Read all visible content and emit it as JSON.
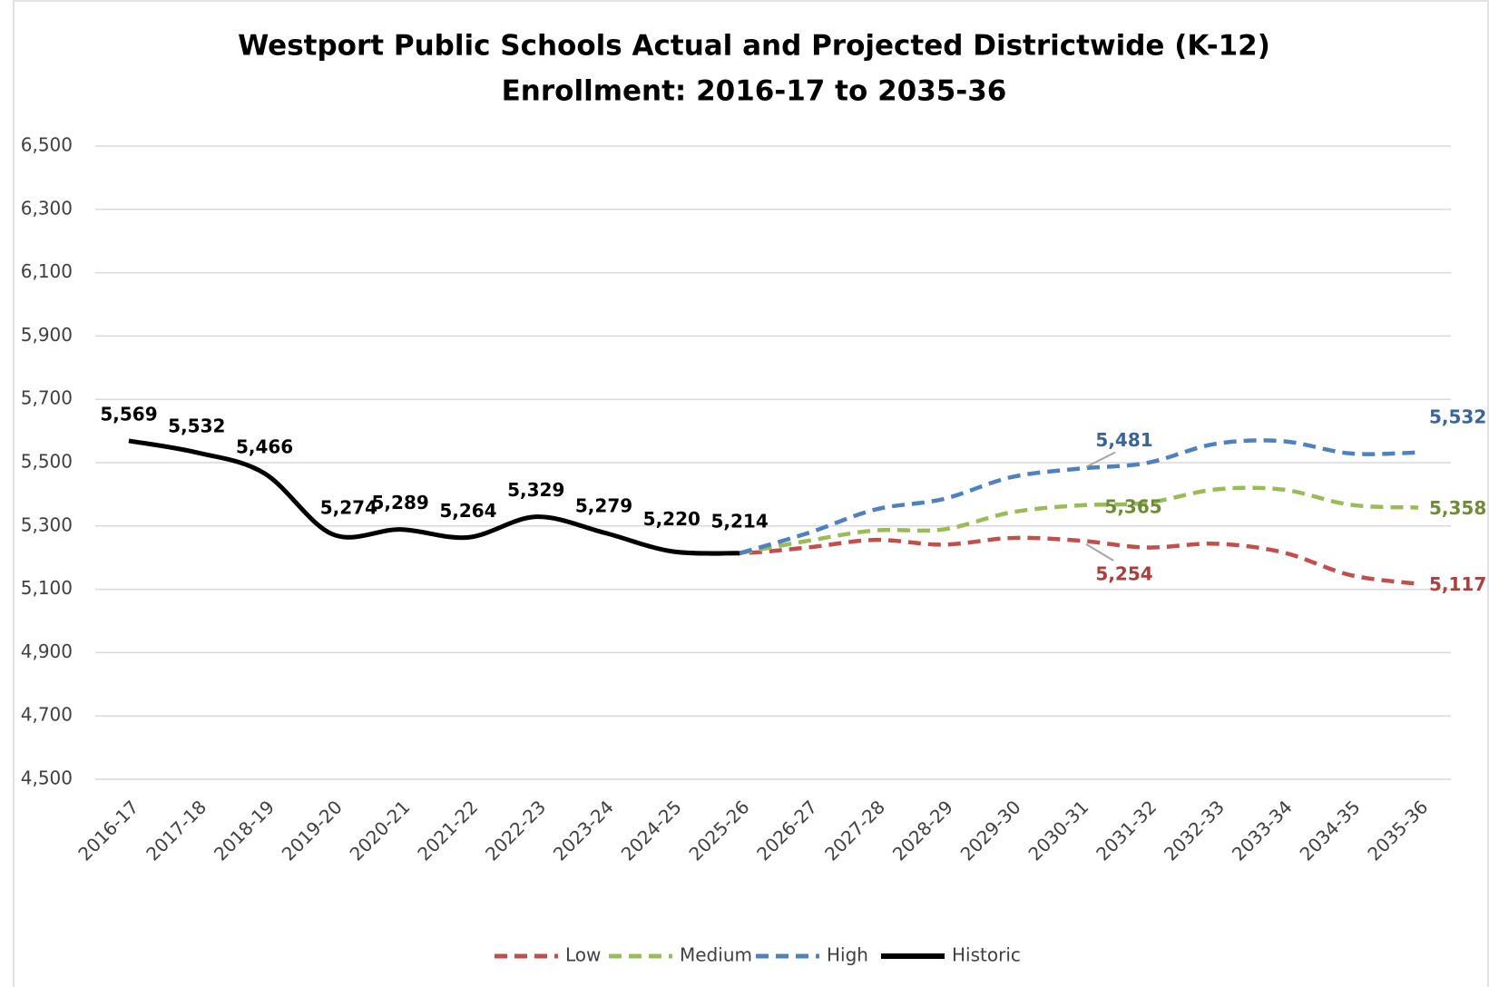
{
  "chart_data": {
    "type": "line",
    "title": [
      "Westport Public Schools Actual and Projected Districtwide (K-12)",
      "Enrollment: 2016-17 to 2035-36"
    ],
    "categories": [
      "2016-17",
      "2017-18",
      "2018-19",
      "2019-20",
      "2020-21",
      "2021-22",
      "2022-23",
      "2023-24",
      "2024-25",
      "2025-26",
      "2026-27",
      "2027-28",
      "2028-29",
      "2029-30",
      "2030-31",
      "2031-32",
      "2032-33",
      "2033-34",
      "2034-35",
      "2035-36"
    ],
    "series": [
      {
        "name": "Low",
        "color": "#c0504d",
        "label_color": "#a8403d",
        "dashed": true,
        "values": [
          5569,
          5532,
          5466,
          5274,
          5289,
          5264,
          5329,
          5279,
          5220,
          5214,
          5232,
          5256,
          5241,
          5262,
          5254,
          5232,
          5244,
          5217,
          5145,
          5117
        ],
        "value_labels": [
          null,
          null,
          null,
          null,
          null,
          null,
          null,
          null,
          null,
          null,
          null,
          null,
          null,
          null,
          "5,254",
          null,
          null,
          null,
          null,
          "5,117"
        ]
      },
      {
        "name": "Medium",
        "color": "#9bbb59",
        "label_color": "#6f8a38",
        "dashed": true,
        "values": [
          null,
          null,
          null,
          null,
          null,
          null,
          null,
          null,
          null,
          5214,
          5253,
          5286,
          5289,
          5343,
          5365,
          5373,
          5415,
          5415,
          5367,
          5358
        ],
        "value_labels": [
          null,
          null,
          null,
          null,
          null,
          null,
          null,
          null,
          null,
          null,
          null,
          null,
          null,
          null,
          "5,365",
          null,
          null,
          null,
          null,
          "5,358"
        ]
      },
      {
        "name": "High",
        "color": "#4f81bd",
        "label_color": "#3a6596",
        "dashed": true,
        "values": [
          null,
          null,
          null,
          null,
          null,
          null,
          null,
          null,
          null,
          5214,
          5277,
          5352,
          5385,
          5454,
          5481,
          5499,
          5559,
          5568,
          5529,
          5532
        ],
        "value_labels": [
          null,
          null,
          null,
          null,
          null,
          null,
          null,
          null,
          null,
          null,
          null,
          null,
          null,
          null,
          "5,481",
          null,
          null,
          null,
          null,
          "5,532"
        ]
      },
      {
        "name": "Historic",
        "color": "#000000",
        "label_color": "#000000",
        "dashed": false,
        "values": [
          5569,
          5532,
          5466,
          5274,
          5289,
          5264,
          5329,
          5279,
          5220,
          5214,
          null,
          null,
          null,
          null,
          null,
          null,
          null,
          null,
          null,
          null
        ],
        "value_labels": [
          "5,569",
          "5,532",
          "5,466",
          "5,274",
          "5,289",
          "5,264",
          "5,329",
          "5,279",
          "5,220",
          "5,214",
          null,
          null,
          null,
          null,
          null,
          null,
          null,
          null,
          null,
          null
        ]
      }
    ],
    "ylim": [
      4500,
      6500
    ],
    "yticks": [
      {
        "value": 4500,
        "label": "4,500"
      },
      {
        "value": 4700,
        "label": "4,700"
      },
      {
        "value": 4900,
        "label": "4,900"
      },
      {
        "value": 5100,
        "label": "5,100"
      },
      {
        "value": 5300,
        "label": "5,300"
      },
      {
        "value": 5500,
        "label": "5,500"
      },
      {
        "value": 5700,
        "label": "5,700"
      },
      {
        "value": 5900,
        "label": "5,900"
      },
      {
        "value": 6100,
        "label": "6,100"
      },
      {
        "value": 6300,
        "label": "6,300"
      },
      {
        "value": 6500,
        "label": "6,500"
      }
    ],
    "grid": true,
    "legend": "bottom"
  }
}
